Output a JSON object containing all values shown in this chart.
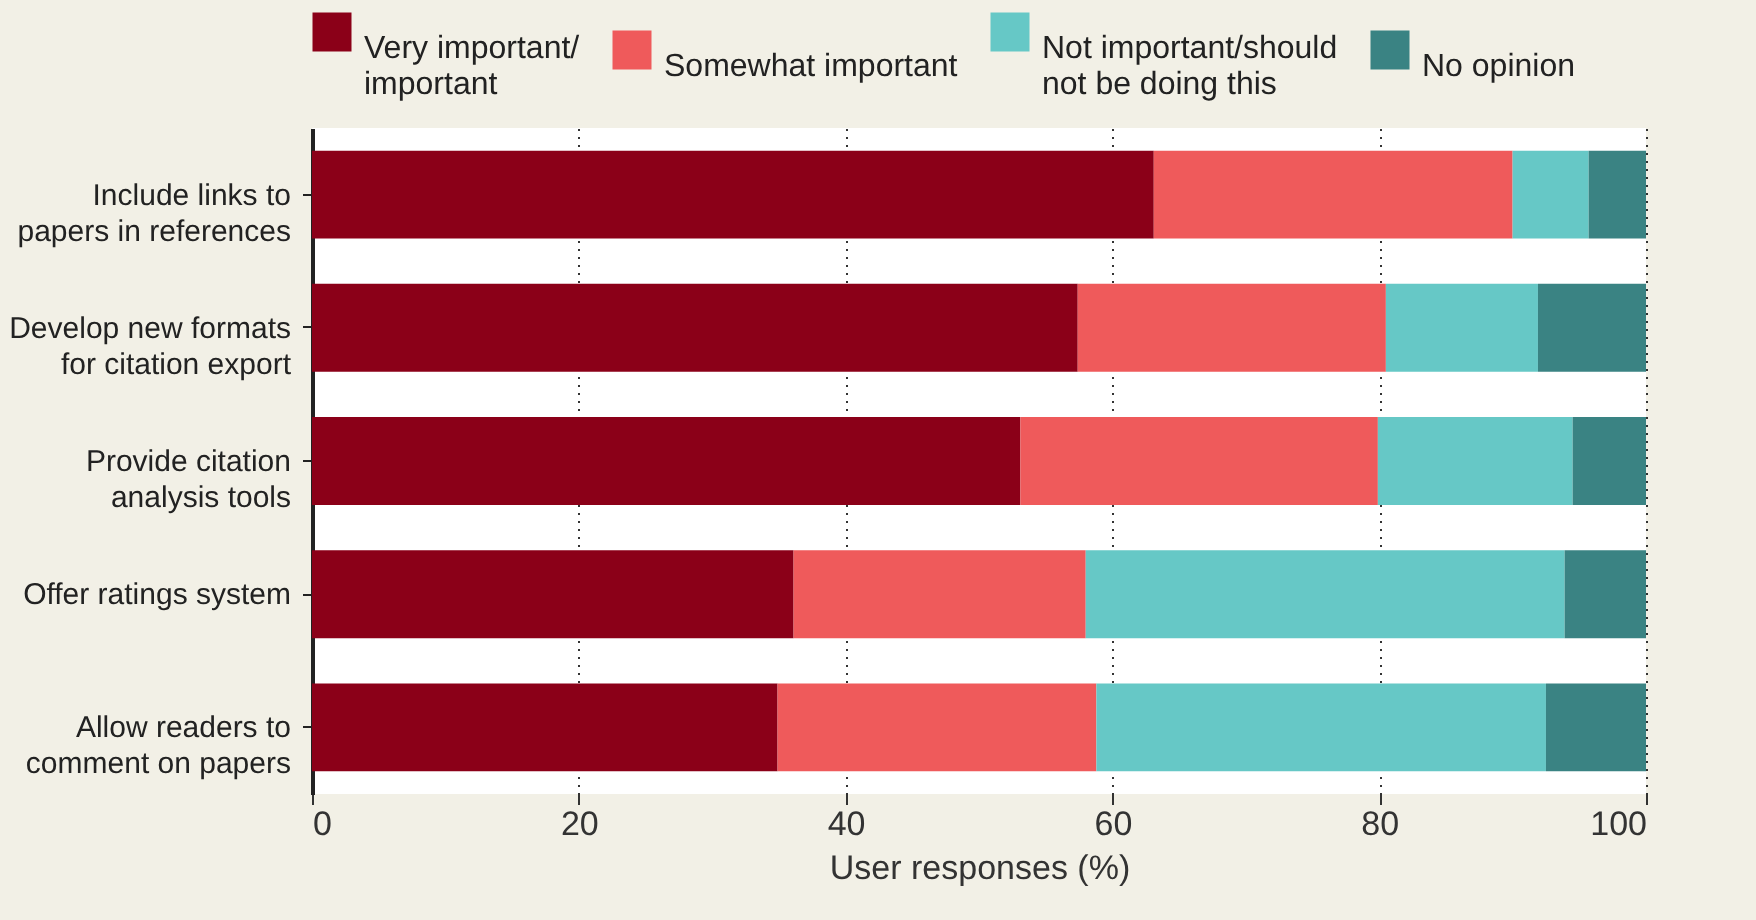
{
  "chart_data": {
    "type": "bar",
    "orientation": "horizontal",
    "stacked": true,
    "xlabel": "User responses (%)",
    "categories": [
      "Include links to papers in references",
      "Develop new formats for citation export",
      "Provide citation analysis tools",
      "Offer ratings system",
      "Allow readers to comment on papers"
    ],
    "series": [
      {
        "name": "Very important/ important",
        "color": "#8b0018",
        "values": [
          63.1,
          57.4,
          53.1,
          36.1,
          34.9
        ]
      },
      {
        "name": "Somewhat important",
        "color": "#ef5a5b",
        "values": [
          26.9,
          23.1,
          26.8,
          21.9,
          23.9
        ]
      },
      {
        "name": "Not important/should not be doing this",
        "color": "#66c8c6",
        "values": [
          5.7,
          11.4,
          14.6,
          35.9,
          33.7
        ]
      },
      {
        "name": "No opinion",
        "color": "#3a8383",
        "values": [
          4.3,
          8.1,
          5.5,
          6.1,
          7.5
        ]
      }
    ],
    "xlim": [
      0,
      100
    ],
    "xticks": [
      0,
      20,
      40,
      60,
      80,
      100
    ],
    "grid": "x",
    "legend": "top"
  }
}
